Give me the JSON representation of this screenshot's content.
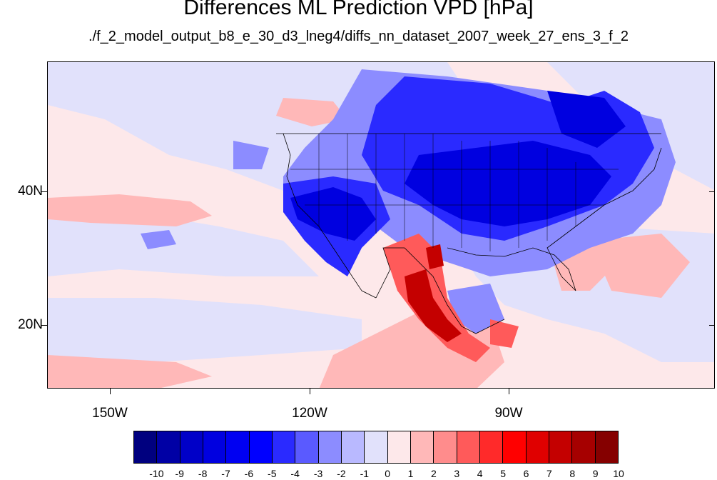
{
  "title": "Differences ML Prediction VPD [hPa]",
  "subtitle": "./f_2_model_output_b8_e_30_d3_lneg4/diffs_nn_dataset_2007_week_27_ens_3_f_2",
  "axes": {
    "lat_labels": [
      "40N",
      "20N"
    ],
    "lon_labels": [
      "150W",
      "120W",
      "90W"
    ]
  },
  "colorbar": {
    "labels": [
      "-10",
      "-9",
      "-8",
      "-7",
      "-6",
      "-5",
      "-4",
      "-3",
      "-2",
      "-1",
      "0",
      "1",
      "2",
      "3",
      "4",
      "5",
      "6",
      "7",
      "8",
      "9",
      "10"
    ],
    "colors": [
      "#00007f",
      "#0000a5",
      "#0000c8",
      "#0000e0",
      "#0000f2",
      "#0000ff",
      "#2a2aff",
      "#5a5aff",
      "#8c8cff",
      "#b9b9ff",
      "#e1e1fb",
      "#fde8ea",
      "#ffb8b8",
      "#ff8c8c",
      "#ff5a5a",
      "#ff2a2a",
      "#ff0000",
      "#e00000",
      "#c40000",
      "#a60000",
      "#850000"
    ]
  }
}
